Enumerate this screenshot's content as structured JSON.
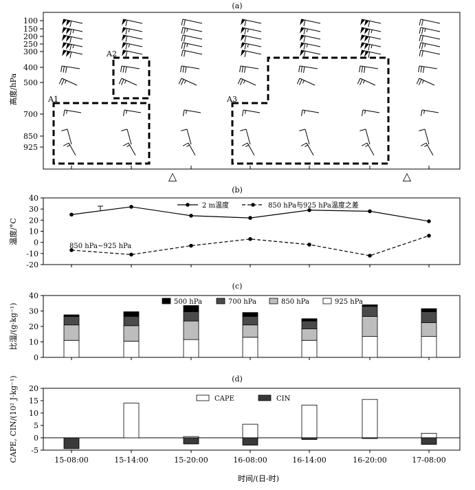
{
  "panel_labels": [
    "(a)",
    "(b)",
    "(c)",
    "(d)"
  ],
  "x_axis": {
    "label": "时间/(日-时)",
    "ticks": [
      "15-08:00",
      "15-14:00",
      "15-20:00",
      "16-08:00",
      "16-14:00",
      "16-20:00",
      "17-08:00"
    ]
  },
  "chart_data": [
    {
      "id": "a",
      "type": "wind-barb-profile",
      "ylabel": "高度/hPa",
      "levels": [
        100,
        150,
        200,
        250,
        300,
        400,
        500,
        700,
        850,
        925
      ],
      "level_labels": [
        "100",
        "150",
        "200",
        "250",
        "300",
        "400",
        "500",
        "700",
        "850",
        "925"
      ],
      "regions": [
        "A1",
        "A2",
        "A3"
      ],
      "markers": [
        "△",
        "△"
      ]
    },
    {
      "id": "b",
      "type": "line",
      "ylabel": "温度/°C",
      "ylim": [
        -20,
        40
      ],
      "yticks": [
        "40",
        "30",
        "20",
        "10",
        "0",
        "-10",
        "-20"
      ],
      "series": [
        {
          "name": "2 m温度",
          "values": [
            25,
            32,
            24,
            22,
            29,
            28,
            19
          ]
        },
        {
          "name": "850 hPa与925 hPa温度之差",
          "values": [
            -7,
            -11,
            -3,
            3,
            -2,
            -12,
            6
          ]
        }
      ],
      "annotation": "850 hPa~925 hPa"
    },
    {
      "id": "c",
      "type": "bar",
      "stacked": true,
      "ylabel": "比湿/(g·kg⁻¹)",
      "ylim": [
        0,
        40
      ],
      "yticks": [
        "40",
        "30",
        "20",
        "10",
        "0"
      ],
      "series": [
        {
          "name": "925 hPa",
          "color": "#ffffff",
          "values": [
            11,
            10.5,
            11.5,
            13,
            11,
            13.5,
            13.5
          ]
        },
        {
          "name": "850 hPa",
          "color": "#bdbdbd",
          "values": [
            10,
            10,
            12,
            8,
            7.5,
            13,
            9
          ]
        },
        {
          "name": "700 hPa",
          "color": "#4a4a4a",
          "values": [
            5.5,
            6,
            6,
            5.5,
            5,
            6.5,
            7
          ]
        },
        {
          "name": "500 hPa",
          "color": "#000000",
          "values": [
            1,
            3,
            4,
            2.5,
            1.5,
            1,
            2
          ]
        }
      ]
    },
    {
      "id": "d",
      "type": "bar",
      "ylabel": "CAPE, CIN/(10² J·kg⁻¹)",
      "ylim": [
        -5,
        20
      ],
      "yticks": [
        "20",
        "15",
        "10",
        "5",
        "0",
        "-5"
      ],
      "series": [
        {
          "name": "CAPE",
          "color": "#ffffff",
          "values": [
            0,
            14,
            0.5,
            5.5,
            13.2,
            15.5,
            1.8
          ]
        },
        {
          "name": "CIN",
          "color": "#3a3a3a",
          "values": [
            -4.4,
            0,
            -2.5,
            -3,
            -0.7,
            -0.3,
            -2.7
          ]
        }
      ]
    }
  ]
}
